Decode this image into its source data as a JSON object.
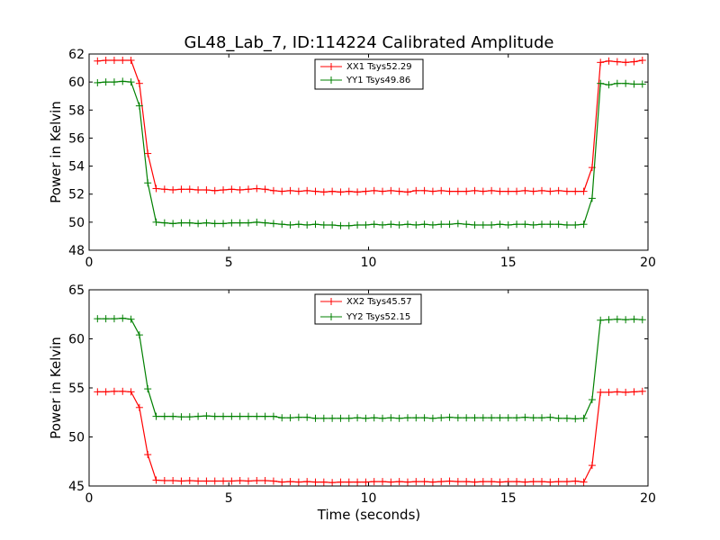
{
  "figure_title": "GL48_Lab_7, ID:114224 Calibrated Amplitude",
  "chart_data": [
    {
      "type": "line",
      "title": "GL48_Lab_7, ID:114224 Calibrated Amplitude",
      "xlabel": "",
      "ylabel": "Power in Kelvin",
      "xlim": [
        0,
        20
      ],
      "ylim": [
        48,
        62
      ],
      "xticks": [
        "0",
        "5",
        "10",
        "15",
        "20"
      ],
      "yticks": [
        "48",
        "50",
        "52",
        "54",
        "56",
        "58",
        "60",
        "62"
      ],
      "xtick_values": [
        0,
        5,
        10,
        15,
        20
      ],
      "ytick_values": [
        48,
        50,
        52,
        54,
        56,
        58,
        60,
        62
      ],
      "legend_position": "top-center",
      "x": [
        0.3,
        0.6,
        0.9,
        1.2,
        1.5,
        1.8,
        2.1,
        2.4,
        2.7,
        3.0,
        3.3,
        3.6,
        3.9,
        4.2,
        4.5,
        4.8,
        5.1,
        5.4,
        5.7,
        6.0,
        6.3,
        6.6,
        6.9,
        7.2,
        7.5,
        7.8,
        8.1,
        8.4,
        8.7,
        9.0,
        9.3,
        9.6,
        9.9,
        10.2,
        10.5,
        10.8,
        11.1,
        11.4,
        11.7,
        12.0,
        12.3,
        12.6,
        12.9,
        13.2,
        13.5,
        13.8,
        14.1,
        14.4,
        14.7,
        15.0,
        15.3,
        15.6,
        15.9,
        16.2,
        16.5,
        16.8,
        17.1,
        17.4,
        17.7,
        18.0,
        18.3,
        18.6,
        18.9,
        19.2,
        19.5,
        19.8
      ],
      "series": [
        {
          "name": "XX1 Tsys52.29",
          "color": "#ff0000",
          "values": [
            61.5,
            61.55,
            61.55,
            61.55,
            61.55,
            59.9,
            54.9,
            52.4,
            52.35,
            52.3,
            52.35,
            52.35,
            52.3,
            52.3,
            52.25,
            52.3,
            52.35,
            52.3,
            52.35,
            52.4,
            52.35,
            52.25,
            52.2,
            52.25,
            52.2,
            52.25,
            52.2,
            52.15,
            52.2,
            52.15,
            52.2,
            52.15,
            52.2,
            52.25,
            52.2,
            52.25,
            52.2,
            52.15,
            52.25,
            52.25,
            52.2,
            52.25,
            52.2,
            52.2,
            52.2,
            52.25,
            52.2,
            52.25,
            52.2,
            52.2,
            52.2,
            52.25,
            52.2,
            52.25,
            52.2,
            52.25,
            52.2,
            52.2,
            52.2,
            53.9,
            61.4,
            61.5,
            61.45,
            61.4,
            61.45,
            61.55
          ]
        },
        {
          "name": "YY1 Tsys49.86",
          "color": "#008000",
          "values": [
            59.95,
            60.0,
            60.0,
            60.05,
            60.0,
            58.3,
            52.8,
            50.0,
            49.95,
            49.9,
            49.95,
            49.95,
            49.9,
            49.95,
            49.9,
            49.9,
            49.95,
            49.95,
            49.95,
            50.0,
            49.95,
            49.9,
            49.85,
            49.8,
            49.85,
            49.8,
            49.85,
            49.8,
            49.8,
            49.75,
            49.75,
            49.8,
            49.8,
            49.85,
            49.8,
            49.85,
            49.8,
            49.85,
            49.8,
            49.85,
            49.8,
            49.85,
            49.85,
            49.9,
            49.85,
            49.8,
            49.8,
            49.8,
            49.85,
            49.8,
            49.85,
            49.85,
            49.8,
            49.85,
            49.85,
            49.85,
            49.8,
            49.8,
            49.85,
            51.7,
            59.9,
            59.8,
            59.9,
            59.9,
            59.85,
            59.85
          ]
        }
      ]
    },
    {
      "type": "line",
      "title": "",
      "xlabel": "Time (seconds)",
      "ylabel": "Power in Kelvin",
      "xlim": [
        0,
        20
      ],
      "ylim": [
        45,
        65
      ],
      "xticks": [
        "0",
        "5",
        "10",
        "15",
        "20"
      ],
      "yticks": [
        "45",
        "50",
        "55",
        "60",
        "65"
      ],
      "xtick_values": [
        0,
        5,
        10,
        15,
        20
      ],
      "ytick_values": [
        45,
        50,
        55,
        60,
        65
      ],
      "legend_position": "top-center",
      "x": [
        0.3,
        0.6,
        0.9,
        1.2,
        1.5,
        1.8,
        2.1,
        2.4,
        2.7,
        3.0,
        3.3,
        3.6,
        3.9,
        4.2,
        4.5,
        4.8,
        5.1,
        5.4,
        5.7,
        6.0,
        6.3,
        6.6,
        6.9,
        7.2,
        7.5,
        7.8,
        8.1,
        8.4,
        8.7,
        9.0,
        9.3,
        9.6,
        9.9,
        10.2,
        10.5,
        10.8,
        11.1,
        11.4,
        11.7,
        12.0,
        12.3,
        12.6,
        12.9,
        13.2,
        13.5,
        13.8,
        14.1,
        14.4,
        14.7,
        15.0,
        15.3,
        15.6,
        15.9,
        16.2,
        16.5,
        16.8,
        17.1,
        17.4,
        17.7,
        18.0,
        18.3,
        18.6,
        18.9,
        19.2,
        19.5,
        19.8
      ],
      "series": [
        {
          "name": "XX2 Tsys45.57",
          "color": "#ff0000",
          "values": [
            54.6,
            54.6,
            54.65,
            54.65,
            54.6,
            53.0,
            48.2,
            45.6,
            45.55,
            45.55,
            45.5,
            45.55,
            45.5,
            45.5,
            45.5,
            45.5,
            45.5,
            45.55,
            45.5,
            45.55,
            45.55,
            45.5,
            45.4,
            45.45,
            45.4,
            45.45,
            45.4,
            45.4,
            45.35,
            45.4,
            45.4,
            45.4,
            45.4,
            45.45,
            45.45,
            45.4,
            45.45,
            45.4,
            45.45,
            45.45,
            45.4,
            45.45,
            45.5,
            45.45,
            45.45,
            45.4,
            45.45,
            45.45,
            45.4,
            45.45,
            45.45,
            45.4,
            45.45,
            45.45,
            45.4,
            45.45,
            45.45,
            45.5,
            45.4,
            47.1,
            54.55,
            54.55,
            54.6,
            54.55,
            54.6,
            54.65
          ]
        },
        {
          "name": "YY2 Tsys52.15",
          "color": "#008000",
          "values": [
            62.05,
            62.05,
            62.05,
            62.1,
            62.0,
            60.4,
            54.9,
            52.1,
            52.1,
            52.1,
            52.05,
            52.05,
            52.1,
            52.15,
            52.1,
            52.1,
            52.1,
            52.1,
            52.1,
            52.1,
            52.1,
            52.1,
            51.95,
            51.95,
            52.0,
            52.0,
            51.9,
            51.9,
            51.9,
            51.9,
            51.9,
            51.95,
            51.9,
            51.95,
            51.9,
            51.95,
            51.9,
            51.95,
            51.95,
            51.95,
            51.9,
            51.95,
            52.0,
            51.95,
            51.95,
            51.95,
            51.95,
            51.95,
            51.95,
            51.95,
            51.95,
            52.0,
            51.95,
            51.95,
            52.0,
            51.9,
            51.9,
            51.85,
            51.9,
            53.8,
            61.9,
            61.95,
            62.0,
            61.95,
            62.0,
            61.95
          ]
        }
      ]
    }
  ]
}
